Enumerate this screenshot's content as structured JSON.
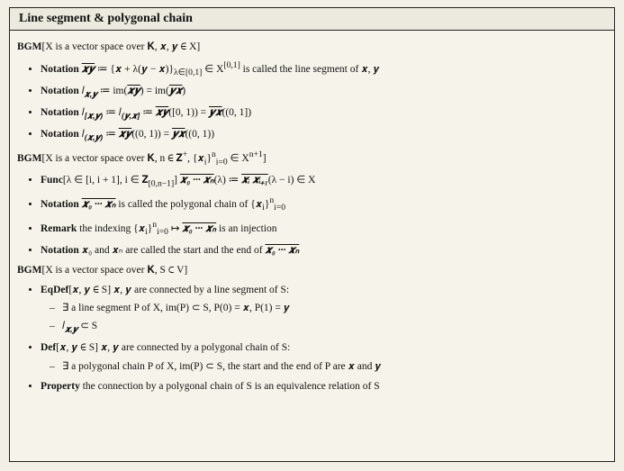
{
  "title": "Line segment & polygonal chain",
  "bgm1_head": "BGM",
  "bgm1_body": "[X is a vector space over 𝐊, 𝒙, 𝒚 ∈ X]",
  "b1": {
    "i1_kw": "Notation",
    "i1_a": "𝒙𝒚",
    "i1_b": " ≔ {𝒙 + λ(𝒚 − 𝒙)}",
    "i1_sub": "λ∈[0,1]",
    "i1_c": " ∈ X",
    "i1_sup": "[0,1]",
    "i1_d": " is called the line segment of 𝒙, 𝒚",
    "i2_kw": "Notation",
    "i2_a": " 𝑙",
    "i2_sub": "𝒙,𝒚",
    "i2_b": " ≔ im(",
    "i2_c": "𝒙𝒚",
    "i2_d": ") = im(",
    "i2_e": "𝒚𝒙",
    "i2_f": ")",
    "i3_kw": "Notation",
    "i3_a": " 𝑙",
    "i3_sub1": "[𝒙,𝒚)",
    "i3_b": " ≔ 𝑙",
    "i3_sub2": "(𝒚,𝒙]",
    "i3_c": " ≔ ",
    "i3_d": "𝒙𝒚",
    "i3_e": "([0, 1)) = ",
    "i3_f": "𝒚𝒙",
    "i3_g": "((0, 1])",
    "i4_kw": "Notation",
    "i4_a": " 𝑙",
    "i4_sub": "(𝒙,𝒚)",
    "i4_b": " ≔ ",
    "i4_c": "𝒙𝒚",
    "i4_d": "((0, 1)) = ",
    "i4_e": "𝒚𝒙",
    "i4_f": "((0, 1))"
  },
  "bgm2_head": "BGM",
  "bgm2_a": "[X is a vector space over 𝐊, n ∈ 𝐙",
  "bgm2_sup1": "+",
  "bgm2_b": ", {𝒙",
  "bgm2_sub1": "i",
  "bgm2_c": "}",
  "bgm2_sup2": "n",
  "bgm2_sub2": "i=0",
  "bgm2_d": " ∈ X",
  "bgm2_sup3": "n+1",
  "bgm2_e": "]",
  "b2": {
    "i1_kw": "Func",
    "i1_a": "[λ ∈ [i, i + 1], i ∈ 𝐙",
    "i1_sub1": "[0,n−1]",
    "i1_b": "] ",
    "i1_c": "𝒙₀ ··· 𝒙ₙ",
    "i1_d": "(λ) ≔ ",
    "i1_e": "𝒙ᵢ 𝒙ᵢ₊₁",
    "i1_f": "(λ − i) ∈ X",
    "i2_kw": "Notation",
    "i2_a": " ",
    "i2_b": "𝒙₀ ··· 𝒙ₙ",
    "i2_c": " is called the polygonal chain of {𝒙",
    "i2_sub": "i",
    "i2_d": "}",
    "i2_sup": "n",
    "i2_sub2": "i=0",
    "i3_kw": "Remark",
    "i3_a": " the indexing {𝒙",
    "i3_sub": "i",
    "i3_b": "}",
    "i3_sup": "n",
    "i3_sub2": "i=0",
    "i3_c": " ↦ ",
    "i3_d": "𝒙₀ ··· 𝒙ₙ",
    "i3_e": " is an injection",
    "i4_kw": "Notation",
    "i4_a": " 𝒙₀ and 𝒙ₙ are called the start and the end of ",
    "i4_b": "𝒙₀ ··· 𝒙ₙ"
  },
  "bgm3_head": "BGM",
  "bgm3_body": "[X is a vector space over 𝐊, S ⊂ V]",
  "b3": {
    "i1_kw": "EqDef",
    "i1_a": "[𝒙, 𝒚 ∈ S]  𝒙, 𝒚 are connected by a line segment of S:",
    "i1s1": "∃ a line segment P of X, im(P) ⊂ S, P(0) = 𝒙, P(1) = 𝒚",
    "i1s2_a": "𝑙",
    "i1s2_sub": "𝒙,𝒚",
    "i1s2_b": " ⊂ S",
    "i2_kw": "Def",
    "i2_a": "[𝒙, 𝒚 ∈ S]  𝒙, 𝒚 are connected by a polygonal chain of S:",
    "i2s1": "∃ a polygonal chain P of X, im(P) ⊂ S, the start and the end of P are 𝒙 and 𝒚",
    "i3_kw": "Property",
    "i3_a": " the connection by a polygonal chain of S is an equivalence relation of S"
  }
}
